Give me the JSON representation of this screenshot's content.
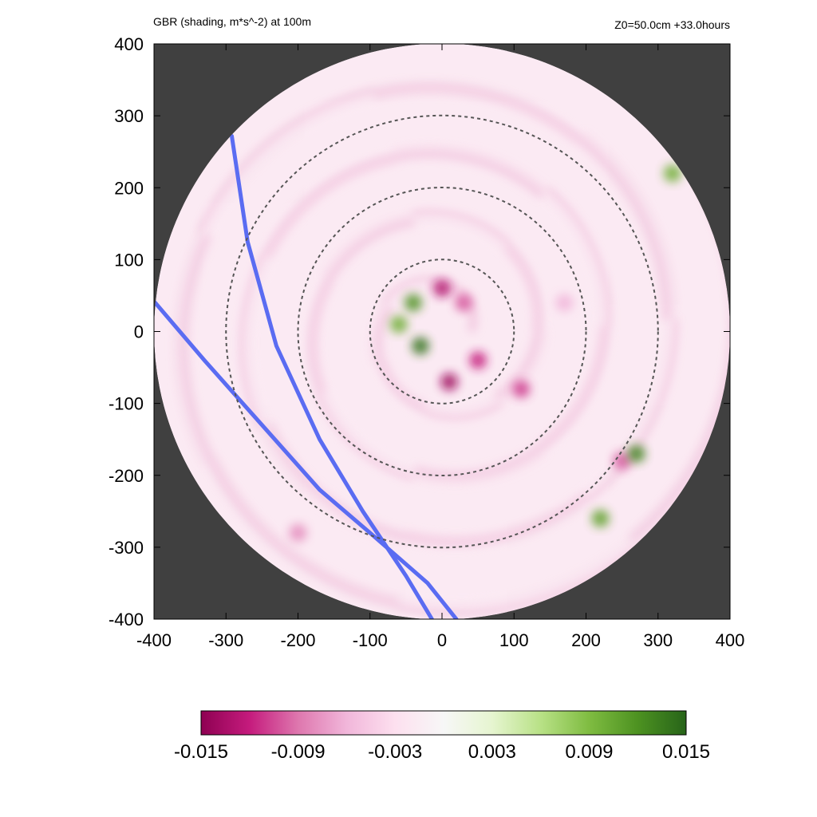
{
  "chart_data": {
    "type": "heatmap",
    "title_left": "GBR (shading, m*s^-2) at 100m",
    "title_right": "Z0=50.0cm  +33.0hours",
    "xlabel": "",
    "ylabel": "",
    "xlim": [
      -400,
      400
    ],
    "ylim": [
      -400,
      400
    ],
    "x_ticks": [
      -400,
      -300,
      -200,
      -100,
      0,
      100,
      200,
      300,
      400
    ],
    "y_ticks": [
      -400,
      -300,
      -200,
      -100,
      0,
      100,
      200,
      300,
      400
    ],
    "x_tick_labels": [
      "-400",
      "-300",
      "-200",
      "-100",
      "0",
      "100",
      "200",
      "300",
      "400"
    ],
    "y_tick_labels": [
      "-400",
      "-300",
      "-200",
      "-100",
      "0",
      "100",
      "200",
      "300",
      "400"
    ],
    "domain_radius": 400,
    "range_rings": [
      100,
      200,
      300
    ],
    "colorbar": {
      "min": -0.015,
      "max": 0.015,
      "ticks": [
        -0.015,
        -0.009,
        -0.003,
        0.003,
        0.009,
        0.015
      ],
      "tick_labels": [
        "-0.015",
        "-0.009",
        "-0.003",
        "0.003",
        "0.009",
        "0.015"
      ],
      "colors": [
        "#8e0152",
        "#c51b7d",
        "#de77ae",
        "#f1b6da",
        "#fde0ef",
        "#f7f7f7",
        "#e6f5d0",
        "#b8e186",
        "#7fbc41",
        "#4d9221",
        "#276419"
      ]
    },
    "blue_lines": [
      {
        "points": [
          [
            -292,
            272
          ],
          [
            -270,
            125
          ],
          [
            -230,
            -20
          ],
          [
            -170,
            -150
          ],
          [
            -110,
            -250
          ],
          [
            -50,
            -340
          ],
          [
            -14,
            -400
          ]
        ]
      },
      {
        "points": [
          [
            -400,
            42
          ],
          [
            -330,
            -40
          ],
          [
            -250,
            -130
          ],
          [
            -170,
            -220
          ],
          [
            -100,
            -280
          ],
          [
            -20,
            -350
          ],
          [
            20,
            -400
          ]
        ]
      }
    ],
    "field_features": [
      {
        "x": 0,
        "y": 60,
        "value": -0.013
      },
      {
        "x": 30,
        "y": 40,
        "value": -0.01
      },
      {
        "x": 50,
        "y": -40,
        "value": -0.012
      },
      {
        "x": 10,
        "y": -70,
        "value": -0.014
      },
      {
        "x": -40,
        "y": 40,
        "value": 0.012
      },
      {
        "x": -30,
        "y": -20,
        "value": 0.014
      },
      {
        "x": -60,
        "y": 10,
        "value": 0.01
      },
      {
        "x": 110,
        "y": -80,
        "value": -0.011
      },
      {
        "x": 250,
        "y": -180,
        "value": -0.01
      },
      {
        "x": 270,
        "y": -170,
        "value": 0.013
      },
      {
        "x": 220,
        "y": -260,
        "value": 0.011
      },
      {
        "x": -200,
        "y": -280,
        "value": -0.008
      },
      {
        "x": 320,
        "y": 220,
        "value": 0.01
      },
      {
        "x": 170,
        "y": 40,
        "value": -0.006
      }
    ]
  }
}
